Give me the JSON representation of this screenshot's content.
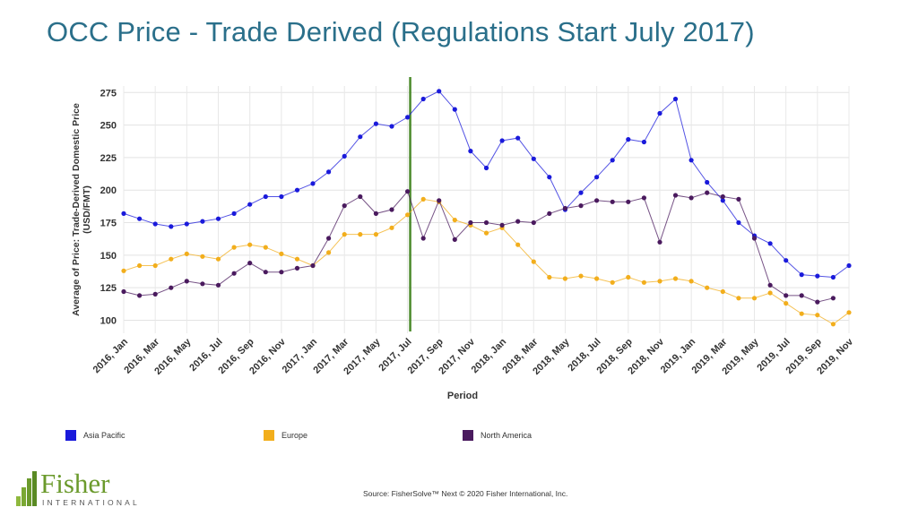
{
  "header": {
    "title": "OCC Price - Trade Derived  (Regulations Start July 2017)"
  },
  "footer": {
    "source": "Source: FisherSolve™ Next © 2020 Fisher International, Inc.",
    "logo_word": "Fisher",
    "logo_sub": "INTERNATIONAL"
  },
  "colors": {
    "asia_pacific": "#1a1adb",
    "europe": "#f2ae1c",
    "north_america": "#4a1a5e",
    "regulation_line": "#4a8a2a"
  },
  "chart_data": {
    "type": "line",
    "title": "",
    "xlabel": "Period",
    "ylabel": "Average of Price: Trade-Derived Domestic Price (USD/FMT)",
    "ylim": [
      90,
      280
    ],
    "yticks": [
      100,
      125,
      150,
      175,
      200,
      225,
      250,
      275
    ],
    "grid": true,
    "legend_position": "bottom",
    "x": [
      "2016, Jan",
      "2016, Feb",
      "2016, Mar",
      "2016, Apr",
      "2016, May",
      "2016, Jun",
      "2016, Jul",
      "2016, Aug",
      "2016, Sep",
      "2016, Oct",
      "2016, Nov",
      "2016, Dec",
      "2017, Jan",
      "2017, Feb",
      "2017, Mar",
      "2017, Apr",
      "2017, May",
      "2017, Jun",
      "2017, Jul",
      "2017, Aug",
      "2017, Sep",
      "2017, Oct",
      "2017, Nov",
      "2017, Dec",
      "2018, Jan",
      "2018, Feb",
      "2018, Mar",
      "2018, Apr",
      "2018, May",
      "2018, Jun",
      "2018, Jul",
      "2018, Aug",
      "2018, Sep",
      "2018, Oct",
      "2018, Nov",
      "2018, Dec",
      "2019, Jan",
      "2019, Feb",
      "2019, Mar",
      "2019, Apr",
      "2019, May",
      "2019, Jun",
      "2019, Jul",
      "2019, Aug",
      "2019, Sep",
      "2019, Oct",
      "2019, Nov"
    ],
    "x_tick_labels": [
      "2016, Jan",
      "2016, Mar",
      "2016, May",
      "2016, Jul",
      "2016, Sep",
      "2016, Nov",
      "2017, Jan",
      "2017, Mar",
      "2017, May",
      "2017, Jul",
      "2017, Sep",
      "2017, Nov",
      "2018, Jan",
      "2018, Mar",
      "2018, May",
      "2018, Jul",
      "2018, Sep",
      "2018, Nov",
      "2019, Jan",
      "2019, Mar",
      "2019, May",
      "2019, Jul",
      "2019, Sep",
      "2019, Nov"
    ],
    "annotation_x": "2017, Jul",
    "series": [
      {
        "name": "Asia Pacific",
        "color": "#1a1adb",
        "values": [
          182,
          178,
          174,
          172,
          174,
          176,
          178,
          182,
          189,
          195,
          195,
          200,
          205,
          214,
          226,
          241,
          251,
          249,
          256,
          270,
          276,
          262,
          230,
          217,
          238,
          240,
          224,
          210,
          185,
          198,
          210,
          223,
          239,
          237,
          259,
          270,
          223,
          206,
          192,
          175,
          165,
          159,
          146,
          135,
          134,
          133,
          142
        ]
      },
      {
        "name": "Europe",
        "color": "#f2ae1c",
        "values": [
          138,
          142,
          142,
          147,
          151,
          149,
          147,
          156,
          158,
          156,
          151,
          147,
          142,
          152,
          166,
          166,
          166,
          171,
          181,
          193,
          191,
          177,
          173,
          167,
          171,
          158,
          145,
          133,
          132,
          134,
          132,
          129,
          133,
          129,
          130,
          132,
          130,
          125,
          122,
          117,
          117,
          121,
          113,
          105,
          104,
          97,
          106
        ]
      },
      {
        "name": "North America",
        "color": "#4a1a5e",
        "values": [
          122,
          119,
          120,
          125,
          130,
          128,
          127,
          136,
          144,
          137,
          137,
          140,
          142,
          163,
          188,
          195,
          182,
          185,
          199,
          163,
          192,
          162,
          175,
          175,
          173,
          176,
          175,
          182,
          186,
          188,
          192,
          191,
          191,
          194,
          160,
          196,
          194,
          198,
          195,
          193,
          163,
          127,
          119,
          119,
          114,
          117,
          null
        ]
      }
    ]
  }
}
